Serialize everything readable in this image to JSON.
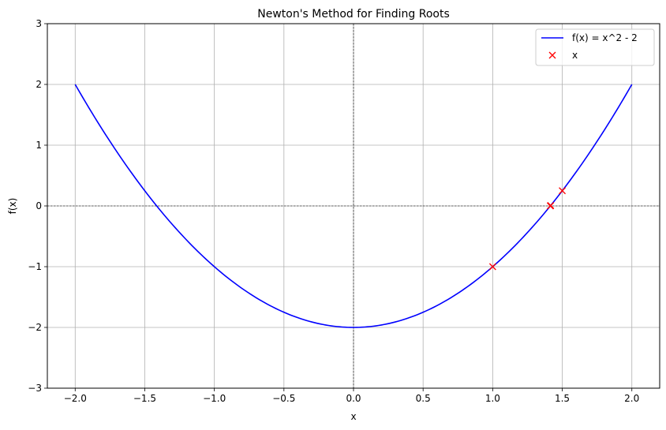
{
  "chart_data": {
    "type": "line",
    "title": "Newton's Method for Finding Roots",
    "xlabel": "x",
    "ylabel": "f(x)",
    "xlim": [
      -2.2,
      2.2
    ],
    "ylim": [
      -3,
      3
    ],
    "xticks": [
      -2.0,
      -1.5,
      -1.0,
      -0.5,
      0.0,
      0.5,
      1.0,
      1.5,
      2.0
    ],
    "xtick_labels": [
      "−2.0",
      "−1.5",
      "−1.0",
      "−0.5",
      "0.0",
      "0.5",
      "1.0",
      "1.5",
      "2.0"
    ],
    "yticks": [
      -3,
      -2,
      -1,
      0,
      1,
      2,
      3
    ],
    "ytick_labels": [
      "−3",
      "−2",
      "−1",
      "0",
      "1",
      "2",
      "3"
    ],
    "grid": true,
    "legend_position": "top-right",
    "series": [
      {
        "name": "f(x) = x^2 - 2",
        "kind": "line",
        "color": "#0000ff",
        "function": "x^2 - 2",
        "x_range": [
          -2.0,
          2.0
        ]
      },
      {
        "name": "x",
        "kind": "marker-x",
        "color": "#ff0000",
        "points": [
          {
            "x": 1.0,
            "y": -1.0
          },
          {
            "x": 1.5,
            "y": 0.25
          },
          {
            "x": 1.4167,
            "y": 0.0069
          },
          {
            "x": 1.4142,
            "y": 0.0
          }
        ]
      }
    ],
    "reference_lines": {
      "horizontal": 0,
      "vertical": 0,
      "color": "#000000",
      "style": "dashed"
    }
  }
}
